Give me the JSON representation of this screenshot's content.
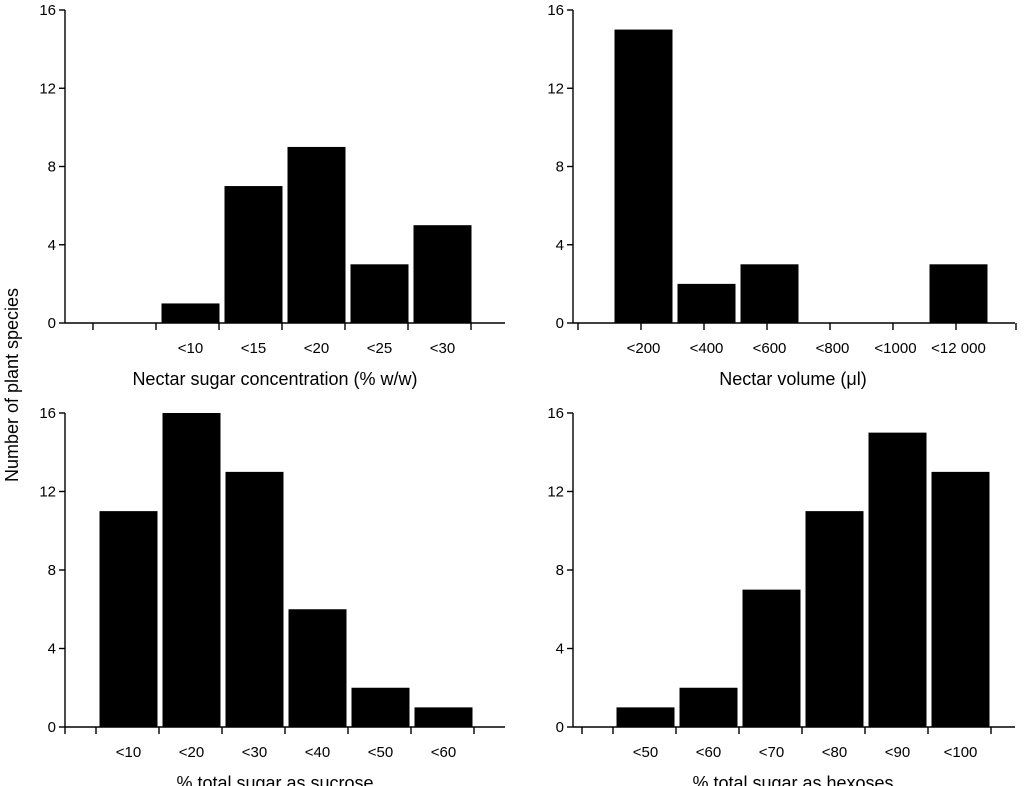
{
  "figure": {
    "shared_ylabel": "Number of plant species"
  },
  "chart_data": [
    {
      "type": "bar",
      "title": "",
      "xlabel": "Nectar sugar concentration (% w/w)",
      "ylabel": "Number of plant species",
      "ylim": [
        0,
        16
      ],
      "yticks": [
        "0",
        "4",
        "8",
        "12",
        "16"
      ],
      "categories": [
        "",
        "<10",
        "<15",
        "<20",
        "<25",
        "<30",
        ""
      ],
      "values": [
        0,
        1,
        7,
        9,
        3,
        5,
        0
      ]
    },
    {
      "type": "bar",
      "title": "",
      "xlabel": "Nectar volume (μl)",
      "ylabel": "Number of plant species",
      "ylim": [
        0,
        16
      ],
      "yticks": [
        "0",
        "4",
        "8",
        "12",
        "16"
      ],
      "categories": [
        "<200",
        "<400",
        "<600",
        "<800",
        "<1000",
        "<12 000"
      ],
      "values": [
        15,
        2,
        3,
        0,
        0,
        3
      ]
    },
    {
      "type": "bar",
      "title": "",
      "xlabel": "% total sugar as sucrose",
      "ylabel": "Number of plant species",
      "ylim": [
        0,
        16
      ],
      "yticks": [
        "0",
        "4",
        "8",
        "12",
        "16"
      ],
      "categories": [
        "<10",
        "<20",
        "<30",
        "<40",
        "<50",
        "<60"
      ],
      "values": [
        11,
        16,
        13,
        6,
        2,
        1
      ]
    },
    {
      "type": "bar",
      "title": "",
      "xlabel": "% total sugar as hexoses",
      "ylabel": "Number of plant species",
      "ylim": [
        0,
        16
      ],
      "yticks": [
        "0",
        "4",
        "8",
        "12",
        "16"
      ],
      "categories": [
        "<50",
        "<60",
        "<70",
        "<80",
        "<90",
        "<100"
      ],
      "values": [
        1,
        2,
        7,
        11,
        15,
        13
      ]
    }
  ]
}
